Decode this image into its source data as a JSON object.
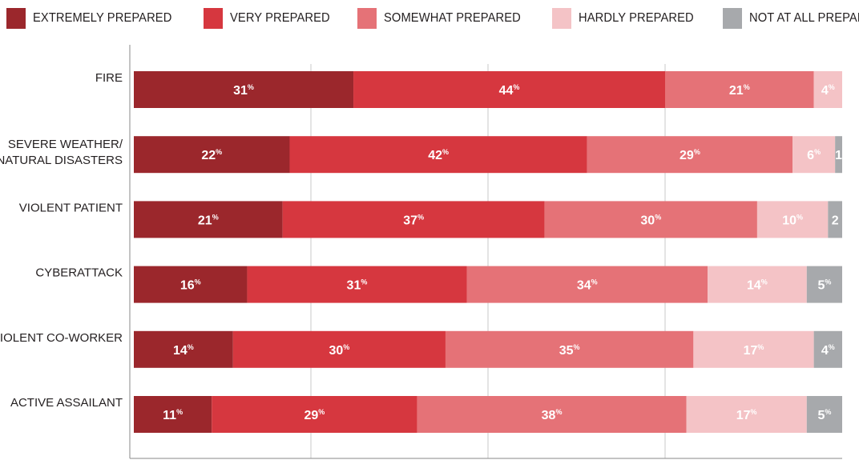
{
  "chart_data": {
    "type": "bar",
    "orientation": "horizontal",
    "stacked": true,
    "legend_position": "top",
    "x_range": [
      0,
      100
    ],
    "categories": [
      [
        "FIRE"
      ],
      [
        "SEVERE WEATHER/",
        "NATURAL DISASTERS"
      ],
      [
        "VIOLENT PATIENT"
      ],
      [
        "CYBERATTACK"
      ],
      [
        "VIOLENT CO-WORKER"
      ],
      [
        "ACTIVE ASSAILANT"
      ]
    ],
    "series": [
      {
        "name": "EXTREMELY PREPARED",
        "color": "#9b272c",
        "values": [
          31,
          22,
          21,
          16,
          14,
          11
        ],
        "labels": [
          "31%",
          "22%",
          "21%",
          "16%",
          "14%",
          "11%"
        ]
      },
      {
        "name": "VERY PREPARED",
        "color": "#d6373f",
        "values": [
          44,
          42,
          37,
          31,
          30,
          29
        ],
        "labels": [
          "44%",
          "42%",
          "37%",
          "31%",
          "30%",
          "29%"
        ]
      },
      {
        "name": "SOMEWHAT PREPARED",
        "color": "#e57277",
        "values": [
          21,
          29,
          30,
          34,
          35,
          38
        ],
        "labels": [
          "21%",
          "29%",
          "30%",
          "34%",
          "35%",
          "38%"
        ]
      },
      {
        "name": "HARDLY PREPARED",
        "color": "#f4c3c6",
        "values": [
          4,
          6,
          10,
          14,
          17,
          17
        ],
        "labels": [
          "4%",
          "6%",
          "10%",
          "14%",
          "17%",
          "17%"
        ]
      },
      {
        "name": "NOT AT ALL PREPARED",
        "color": "#a7a9ac",
        "values": [
          0,
          1,
          2,
          5,
          4,
          5
        ],
        "labels": [
          "",
          "1",
          "2",
          "5%",
          "4%",
          "5%"
        ]
      }
    ]
  }
}
